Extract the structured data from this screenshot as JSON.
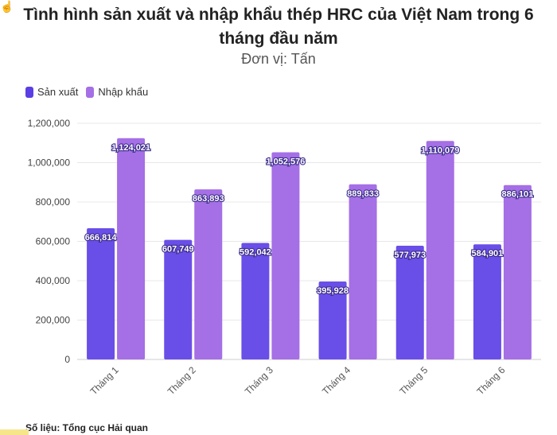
{
  "title": "Tình hình sản xuất và nhập khẩu thép HRC của Việt Nam trong 6 tháng đầu năm",
  "subtitle": "Đơn vị: Tấn",
  "source": "Số liệu: Tổng cục Hải quan",
  "chart_data": {
    "type": "bar",
    "title": "Tình hình sản xuất và nhập khẩu thép HRC của Việt Nam trong 6 tháng đầu năm",
    "subtitle": "Đơn vị: Tấn",
    "categories": [
      "Tháng 1",
      "Tháng 2",
      "Tháng 3",
      "Tháng 4",
      "Tháng 5",
      "Tháng 6"
    ],
    "series": [
      {
        "name": "Sản xuất",
        "color": "#6a4ee8",
        "values": [
          666814,
          607749,
          592042,
          395928,
          577973,
          584901
        ],
        "labels": [
          "666,814",
          "607,749",
          "592,042",
          "395,928",
          "577,973",
          "584,901"
        ]
      },
      {
        "name": "Nhập khẩu",
        "color": "#a56fe6",
        "values": [
          1124021,
          863893,
          1052576,
          889833,
          1110079,
          886101
        ],
        "labels": [
          "1,124,021",
          "863,893",
          "1,052,576",
          "889,833",
          "1,110,079",
          "886,101"
        ]
      }
    ],
    "ylim": [
      0,
      1200000
    ],
    "yticks": [
      0,
      200000,
      400000,
      600000,
      800000,
      1000000,
      1200000
    ],
    "ytick_labels": [
      "0",
      "200,000",
      "400,000",
      "600,000",
      "800,000",
      "1,000,000",
      "1,200,000"
    ],
    "xlabel": "",
    "ylabel": "",
    "grid": true,
    "legend": "top-left"
  }
}
